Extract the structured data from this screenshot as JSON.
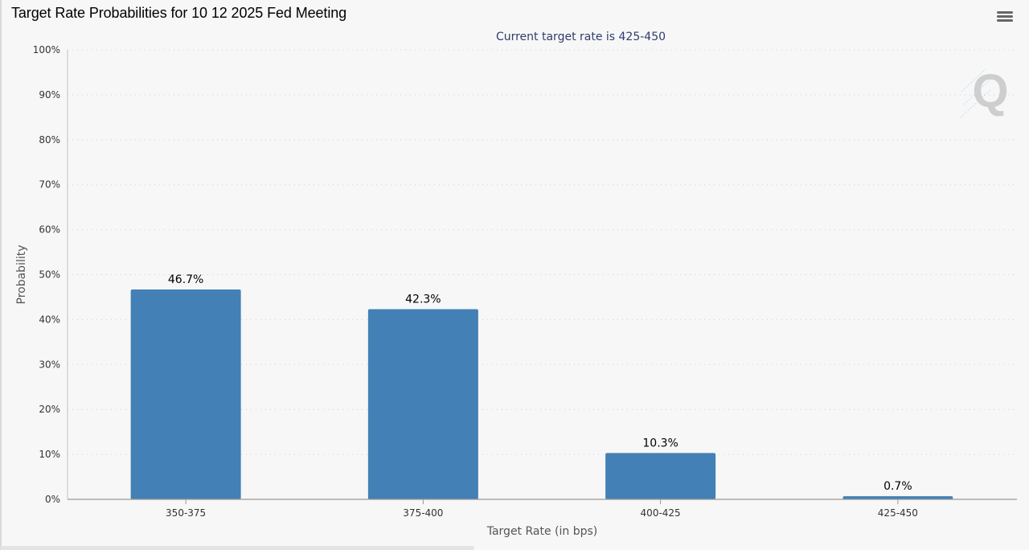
{
  "header": {
    "title": "Target Rate Probabilities for 10 12 2025 Fed Meeting",
    "menu_icon": "hamburger-menu-icon"
  },
  "colors": {
    "bar": "#4380b5",
    "grid": "#cfcfcf",
    "axis": "#999999",
    "text": "#333333",
    "subtitle": "#2f3d6b",
    "background": "#f7f7f7"
  },
  "watermark": {
    "text": "Q"
  },
  "chart_data": {
    "type": "bar",
    "title": "Target Rate Probabilities for 10 12 2025 Fed Meeting",
    "subtitle": "Current target rate is 425-450",
    "xlabel": "Target Rate (in bps)",
    "ylabel": "Probability",
    "categories": [
      "350-375",
      "375-400",
      "400-425",
      "425-450"
    ],
    "values": [
      46.7,
      42.3,
      10.3,
      0.7
    ],
    "data_labels": [
      "46.7%",
      "42.3%",
      "10.3%",
      "0.7%"
    ],
    "ylim": [
      0,
      100
    ],
    "yticks": [
      0,
      10,
      20,
      30,
      40,
      50,
      60,
      70,
      80,
      90,
      100
    ],
    "ytick_labels": [
      "0%",
      "10%",
      "20%",
      "30%",
      "40%",
      "50%",
      "60%",
      "70%",
      "80%",
      "90%",
      "100%"
    ],
    "grid": true,
    "legend": "none"
  }
}
